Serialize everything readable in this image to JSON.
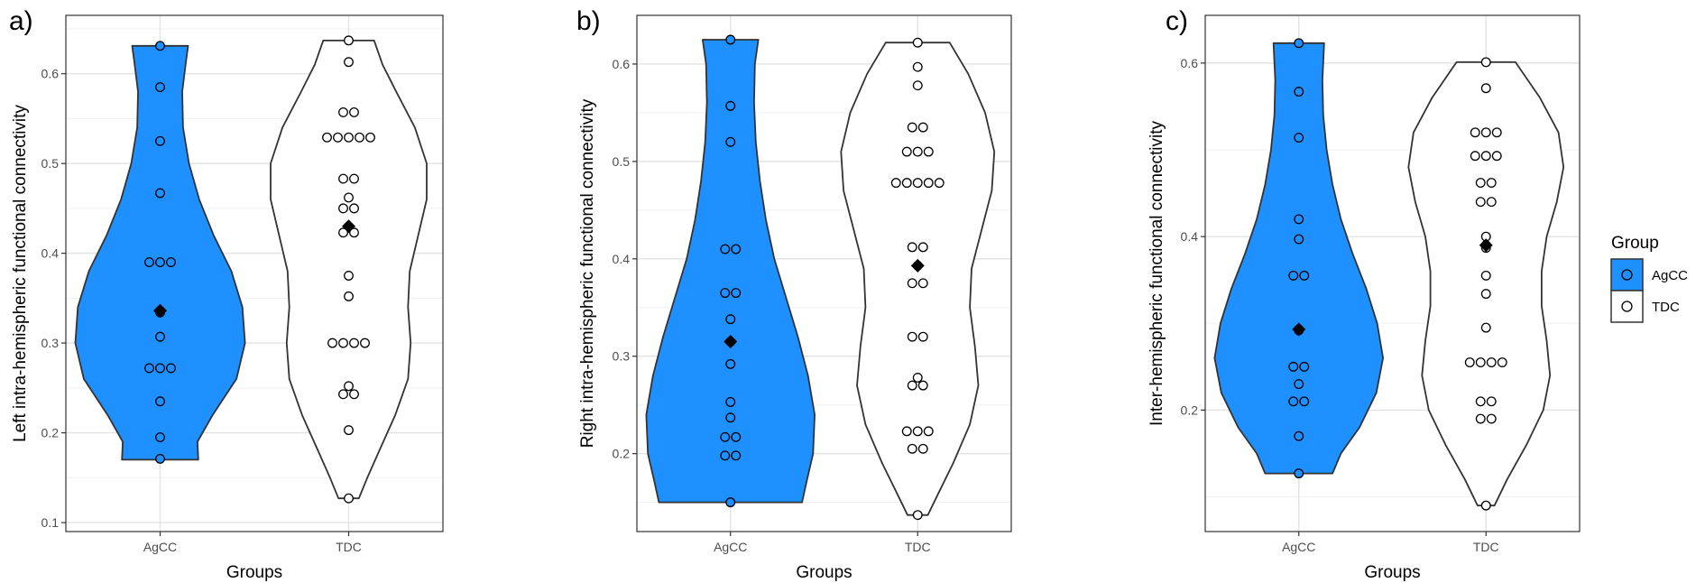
{
  "legend": {
    "title": "Group",
    "position": "right",
    "items": [
      {
        "label": "AgCC",
        "fill": "#1E90FF"
      },
      {
        "label": "TDC",
        "fill": "#FFFFFF"
      }
    ]
  },
  "chart_data": [
    {
      "type": "violin",
      "panel_label": "a)",
      "xlabel": "Groups",
      "ylabel": "Left intra-hemispheric functional connectivity",
      "ylim": [
        0.09,
        0.665
      ],
      "yticks": [
        0.1,
        0.2,
        0.3,
        0.4,
        0.5,
        0.6
      ],
      "grid": true,
      "categories": [
        "AgCC",
        "TDC"
      ],
      "groups": [
        {
          "name": "AgCC",
          "fill": "#1E90FF",
          "min": 0.17,
          "max": 0.631,
          "profile": [
            [
              0.17,
              0.45
            ],
            [
              0.19,
              0.44
            ],
            [
              0.22,
              0.62
            ],
            [
              0.26,
              0.9
            ],
            [
              0.3,
              1.0
            ],
            [
              0.34,
              0.97
            ],
            [
              0.38,
              0.84
            ],
            [
              0.42,
              0.63
            ],
            [
              0.46,
              0.46
            ],
            [
              0.5,
              0.34
            ],
            [
              0.54,
              0.27
            ],
            [
              0.58,
              0.26
            ],
            [
              0.61,
              0.3
            ],
            [
              0.631,
              0.33
            ]
          ],
          "points": [
            0.631,
            0.585,
            0.525,
            0.467,
            0.39,
            0.39,
            0.39,
            0.336,
            0.334,
            0.307,
            0.272,
            0.272,
            0.272,
            0.235,
            0.195,
            0.171
          ],
          "mean": 0.336
        },
        {
          "name": "TDC",
          "fill": "#FFFFFF",
          "min": 0.127,
          "max": 0.637,
          "profile": [
            [
              0.127,
              0.12
            ],
            [
              0.15,
              0.22
            ],
            [
              0.18,
              0.36
            ],
            [
              0.22,
              0.55
            ],
            [
              0.26,
              0.7
            ],
            [
              0.3,
              0.73
            ],
            [
              0.34,
              0.7
            ],
            [
              0.38,
              0.72
            ],
            [
              0.42,
              0.82
            ],
            [
              0.46,
              0.92
            ],
            [
              0.5,
              0.92
            ],
            [
              0.54,
              0.78
            ],
            [
              0.58,
              0.56
            ],
            [
              0.61,
              0.4
            ],
            [
              0.637,
              0.3
            ]
          ],
          "points": [
            0.637,
            0.613,
            0.557,
            0.557,
            0.529,
            0.529,
            0.529,
            0.529,
            0.529,
            0.483,
            0.483,
            0.462,
            0.45,
            0.45,
            0.423,
            0.423,
            0.375,
            0.352,
            0.3,
            0.3,
            0.3,
            0.3,
            0.252,
            0.243,
            0.243,
            0.203,
            0.127
          ],
          "mean": 0.43
        }
      ]
    },
    {
      "type": "violin",
      "panel_label": "b)",
      "xlabel": "Groups",
      "ylabel": "Right intra-hemispheric functional connectivity",
      "ylim": [
        0.12,
        0.65
      ],
      "yticks": [
        0.2,
        0.3,
        0.4,
        0.5,
        0.6
      ],
      "grid": true,
      "categories": [
        "AgCC",
        "TDC"
      ],
      "groups": [
        {
          "name": "AgCC",
          "fill": "#1E90FF",
          "min": 0.15,
          "max": 0.625,
          "profile": [
            [
              0.15,
              0.85
            ],
            [
              0.17,
              0.9
            ],
            [
              0.2,
              0.98
            ],
            [
              0.24,
              1.0
            ],
            [
              0.28,
              0.92
            ],
            [
              0.32,
              0.8
            ],
            [
              0.36,
              0.66
            ],
            [
              0.4,
              0.52
            ],
            [
              0.44,
              0.42
            ],
            [
              0.48,
              0.35
            ],
            [
              0.52,
              0.3
            ],
            [
              0.56,
              0.28
            ],
            [
              0.6,
              0.29
            ],
            [
              0.625,
              0.33
            ]
          ],
          "points": [
            0.625,
            0.557,
            0.52,
            0.41,
            0.41,
            0.365,
            0.365,
            0.338,
            0.315,
            0.292,
            0.253,
            0.237,
            0.217,
            0.217,
            0.198,
            0.198,
            0.15
          ],
          "mean": 0.315
        },
        {
          "name": "TDC",
          "fill": "#FFFFFF",
          "min": 0.137,
          "max": 0.622,
          "profile": [
            [
              0.137,
              0.12
            ],
            [
              0.16,
              0.25
            ],
            [
              0.19,
              0.42
            ],
            [
              0.23,
              0.62
            ],
            [
              0.27,
              0.72
            ],
            [
              0.31,
              0.68
            ],
            [
              0.35,
              0.62
            ],
            [
              0.39,
              0.64
            ],
            [
              0.43,
              0.76
            ],
            [
              0.47,
              0.88
            ],
            [
              0.51,
              0.91
            ],
            [
              0.55,
              0.8
            ],
            [
              0.59,
              0.6
            ],
            [
              0.622,
              0.38
            ]
          ],
          "points": [
            0.622,
            0.597,
            0.578,
            0.535,
            0.535,
            0.51,
            0.51,
            0.51,
            0.478,
            0.478,
            0.478,
            0.478,
            0.478,
            0.412,
            0.412,
            0.393,
            0.375,
            0.375,
            0.32,
            0.32,
            0.278,
            0.27,
            0.27,
            0.223,
            0.223,
            0.223,
            0.205,
            0.205,
            0.137
          ],
          "mean": 0.393
        }
      ]
    },
    {
      "type": "violin",
      "panel_label": "c)",
      "xlabel": "Groups",
      "ylabel": "Inter-hemispheric functional connectivity",
      "ylim": [
        0.06,
        0.655
      ],
      "yticks": [
        0.2,
        0.4,
        0.6
      ],
      "grid": true,
      "categories": [
        "AgCC",
        "TDC"
      ],
      "groups": [
        {
          "name": "AgCC",
          "fill": "#1E90FF",
          "min": 0.127,
          "max": 0.623,
          "profile": [
            [
              0.127,
              0.4
            ],
            [
              0.15,
              0.5
            ],
            [
              0.18,
              0.72
            ],
            [
              0.22,
              0.92
            ],
            [
              0.26,
              1.0
            ],
            [
              0.3,
              0.93
            ],
            [
              0.34,
              0.8
            ],
            [
              0.38,
              0.64
            ],
            [
              0.42,
              0.5
            ],
            [
              0.46,
              0.4
            ],
            [
              0.5,
              0.33
            ],
            [
              0.54,
              0.29
            ],
            [
              0.58,
              0.28
            ],
            [
              0.623,
              0.3
            ]
          ],
          "points": [
            0.623,
            0.567,
            0.514,
            0.42,
            0.397,
            0.355,
            0.355,
            0.293,
            0.292,
            0.25,
            0.25,
            0.23,
            0.21,
            0.21,
            0.17,
            0.127
          ],
          "mean": 0.293
        },
        {
          "name": "TDC",
          "fill": "#FFFFFF",
          "min": 0.09,
          "max": 0.601,
          "profile": [
            [
              0.09,
              0.1
            ],
            [
              0.12,
              0.25
            ],
            [
              0.16,
              0.48
            ],
            [
              0.2,
              0.68
            ],
            [
              0.24,
              0.76
            ],
            [
              0.28,
              0.72
            ],
            [
              0.32,
              0.66
            ],
            [
              0.36,
              0.66
            ],
            [
              0.4,
              0.72
            ],
            [
              0.44,
              0.84
            ],
            [
              0.48,
              0.92
            ],
            [
              0.52,
              0.86
            ],
            [
              0.56,
              0.64
            ],
            [
              0.601,
              0.35
            ]
          ],
          "points": [
            0.601,
            0.571,
            0.52,
            0.52,
            0.52,
            0.493,
            0.493,
            0.493,
            0.462,
            0.462,
            0.44,
            0.44,
            0.4,
            0.39,
            0.387,
            0.355,
            0.334,
            0.295,
            0.255,
            0.255,
            0.255,
            0.255,
            0.21,
            0.21,
            0.19,
            0.19,
            0.09
          ],
          "mean": 0.39
        }
      ]
    }
  ]
}
